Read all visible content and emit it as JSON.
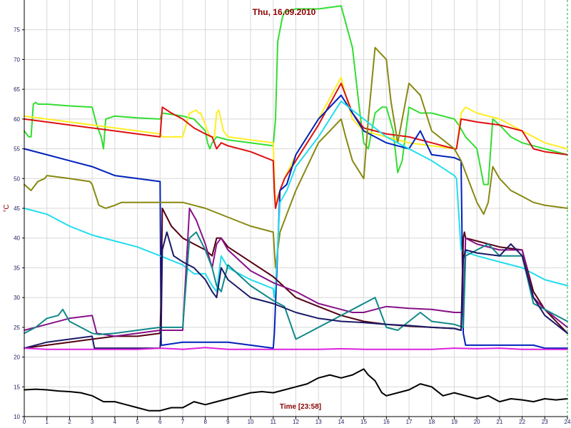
{
  "chart_data": {
    "type": "line",
    "title": "Thu, 16.09.2010",
    "xlabel": "Time [23:58]",
    "ylabel": "°C",
    "xlim": [
      0,
      24
    ],
    "ylim": [
      10,
      80
    ],
    "xticks": [
      "0",
      "1",
      "2",
      "3",
      "4",
      "5",
      "6",
      "7",
      "8",
      "9",
      "10",
      "11",
      "12",
      "13",
      "14",
      "15",
      "16",
      "17",
      "18",
      "19",
      "20",
      "21",
      "22",
      "23",
      "24"
    ],
    "yticks": [
      "10",
      "15",
      "20",
      "25",
      "30",
      "35",
      "40",
      "45",
      "50",
      "55",
      "60",
      "65",
      "70",
      "75"
    ],
    "grid": true,
    "background": "#ffffff",
    "grid_color": "#d8d8d8",
    "axis_color": "#000000",
    "series": [
      {
        "color": "#33dd33",
        "x": [
          0,
          0.2,
          0.3,
          0.4,
          0.5,
          0.6,
          1,
          2,
          3,
          3.2,
          3.4,
          3.5,
          3.6,
          4,
          5,
          6,
          6.1,
          7,
          7.5,
          8,
          8.1,
          8.2,
          8.3,
          8.5,
          9,
          10,
          11,
          11.1,
          11.2,
          11.4,
          11.5,
          12,
          13,
          14,
          14.5,
          14.8,
          15,
          15.2,
          15.5,
          15.8,
          16,
          16.3,
          16.5,
          16.7,
          17,
          17.5,
          18,
          19,
          19.2,
          19.5,
          20,
          20.3,
          20.5,
          20.7,
          21,
          21.5,
          22,
          23,
          24
        ],
        "y": [
          58,
          57,
          57,
          62.5,
          62.8,
          62.5,
          62.5,
          62.2,
          62,
          59,
          57,
          55,
          60,
          60.5,
          60.2,
          60,
          61,
          60.5,
          60,
          58,
          56,
          55,
          56,
          57,
          56.5,
          56,
          55.5,
          60,
          73,
          77,
          78,
          78.5,
          78.5,
          79,
          72,
          62,
          56,
          55,
          61,
          62,
          62,
          58,
          51,
          53,
          62,
          61,
          61,
          60,
          59,
          57,
          55,
          49,
          49,
          60,
          59,
          57,
          56,
          55,
          54
        ]
      },
      {
        "color": "#ffee22",
        "x": [
          0,
          1,
          2,
          3,
          4,
          5,
          6,
          6.1,
          6.3,
          6.5,
          7,
          7.3,
          7.6,
          7.7,
          7.8,
          8,
          8.2,
          8.4,
          8.5,
          8.6,
          8.8,
          9,
          10,
          11,
          11.1,
          11.2,
          11.5,
          12,
          13,
          14,
          14.2,
          14.5,
          15,
          16,
          17,
          18,
          19,
          19.1,
          19.3,
          19.5,
          20,
          21,
          22,
          23,
          24
        ],
        "y": [
          60.5,
          60,
          59.5,
          59,
          58.5,
          58,
          57.5,
          57,
          57,
          57,
          57,
          61,
          61.5,
          61,
          61,
          59,
          57,
          57,
          61,
          61.5,
          58,
          57,
          56.5,
          56,
          45,
          47,
          50,
          54,
          60,
          67,
          64,
          60,
          58,
          57,
          56,
          55.5,
          55,
          55,
          61,
          62,
          61,
          60,
          58,
          56,
          55
        ]
      },
      {
        "color": "#dd1111",
        "x": [
          0,
          1,
          2,
          3,
          4,
          5,
          6,
          6.1,
          6.5,
          7,
          7.5,
          8,
          8.3,
          8.5,
          8.7,
          9,
          10,
          11,
          11.05,
          11.1,
          11.3,
          11.5,
          12,
          13,
          14,
          14.5,
          15,
          16,
          17,
          18,
          19,
          19.1,
          19.3,
          20,
          21,
          22,
          22.5,
          23,
          24
        ],
        "y": [
          60,
          59.5,
          59,
          58.5,
          58,
          57.5,
          57,
          62,
          61,
          60,
          58.5,
          57.5,
          57,
          55,
          56,
          55.5,
          54.5,
          53,
          48,
          45,
          48,
          50,
          53,
          59,
          66,
          61,
          58.5,
          57.5,
          57,
          56,
          55,
          55,
          60,
          59.5,
          59,
          58,
          55,
          54.5,
          54
        ]
      },
      {
        "color": "#0022bb",
        "x": [
          0,
          1,
          2,
          3,
          4,
          5,
          6,
          6.05,
          6.1,
          7,
          8,
          9,
          10,
          11,
          11.05,
          11.3,
          11.6,
          12,
          13,
          14,
          14.5,
          15,
          16,
          17,
          17.5,
          18,
          19,
          19.3,
          19.4,
          19.45,
          19.5,
          20,
          21,
          22,
          22.5,
          23,
          24
        ],
        "y": [
          55,
          54,
          53,
          52,
          50.5,
          50,
          49.5,
          22,
          22,
          22.5,
          22.5,
          22.5,
          22,
          21.5,
          24,
          48,
          49,
          54,
          60,
          64,
          61,
          58,
          56,
          55,
          58,
          54,
          53.5,
          53,
          24,
          23,
          22,
          22,
          22,
          22,
          22,
          21.5,
          21.5
        ]
      },
      {
        "color": "#888811",
        "x": [
          0,
          0.3,
          0.6,
          0.9,
          1,
          2,
          2.9,
          3,
          3.3,
          3.6,
          4,
          4.3,
          5,
          6,
          7,
          7.5,
          8,
          9,
          10,
          11,
          11.1,
          11.3,
          11.6,
          12,
          13,
          14,
          14.2,
          14.5,
          15,
          15.2,
          15.5,
          16,
          16.2,
          16.5,
          16.8,
          17,
          17.5,
          18,
          19,
          19.3,
          20,
          20.3,
          20.5,
          20.7,
          21,
          21.5,
          22,
          22.5,
          23,
          24
        ],
        "y": [
          49,
          48,
          49.5,
          50,
          50.5,
          50,
          49.5,
          49,
          45.5,
          45,
          45.5,
          46,
          46,
          46,
          46,
          45.5,
          45,
          43.5,
          42,
          41,
          35,
          41,
          44,
          48,
          56,
          60,
          57,
          53,
          50,
          60,
          72,
          70,
          63,
          56,
          62,
          66,
          64,
          58,
          55,
          53,
          46,
          44,
          46,
          52,
          50,
          48,
          47,
          46,
          45.5,
          45
        ]
      },
      {
        "color": "#22ddee",
        "x": [
          0,
          1,
          2,
          3,
          4,
          5,
          6,
          7,
          7.5,
          8,
          8.3,
          8.5,
          8.7,
          9,
          10,
          11,
          11.05,
          11.1,
          11.3,
          11.6,
          12,
          13,
          14,
          15,
          16,
          17,
          18,
          19,
          19.1,
          19.3,
          19.6,
          20,
          21,
          22,
          23,
          24
        ],
        "y": [
          45,
          44,
          42,
          40.5,
          39.5,
          38.5,
          37,
          35.5,
          34,
          34,
          32,
          31,
          37,
          35,
          33,
          31.5,
          30,
          32,
          46,
          48,
          52,
          57,
          63,
          60,
          57,
          55,
          53,
          50.5,
          50,
          38,
          37.5,
          37,
          36,
          35,
          33,
          32
        ]
      },
      {
        "color": "#550011",
        "x": [
          0,
          1,
          2,
          3,
          4,
          5,
          6,
          6.05,
          6.1,
          6.5,
          7,
          7.5,
          8,
          8.3,
          8.5,
          8.7,
          9,
          10,
          11,
          12,
          13,
          14,
          15,
          16,
          17,
          18,
          19,
          19.3,
          19.4,
          19.45,
          19.5,
          20,
          21,
          22,
          22.5,
          23,
          23.5,
          24
        ],
        "y": [
          21.5,
          22,
          22.5,
          23,
          23.5,
          23.5,
          24,
          30,
          45,
          42,
          40,
          39,
          38,
          37,
          40,
          40,
          38.5,
          36,
          33.5,
          30,
          28.5,
          27,
          26,
          25.5,
          25.2,
          25,
          24.8,
          24.5,
          40,
          41,
          40,
          39.5,
          38.5,
          38,
          31,
          28,
          26,
          24
        ]
      },
      {
        "color": "#881188",
        "x": [
          0,
          1,
          2,
          3,
          3.2,
          4,
          5,
          6,
          6.5,
          7,
          7.3,
          7.6,
          8,
          8.3,
          8.5,
          8.7,
          9,
          10,
          11,
          12,
          13,
          14,
          14.5,
          15,
          15.5,
          16,
          17,
          18,
          19,
          19.4,
          19.5,
          20,
          21,
          22,
          22.5,
          23,
          24
        ],
        "y": [
          24.5,
          25.5,
          26.5,
          27,
          24,
          23.5,
          24,
          24.5,
          24.5,
          24.5,
          45,
          43,
          39,
          35,
          39,
          40,
          38,
          34.5,
          32.5,
          31,
          29,
          28,
          27.5,
          27.5,
          28,
          28.5,
          28.2,
          28,
          27.5,
          27.5,
          40,
          39,
          38,
          38,
          30,
          28,
          25
        ]
      },
      {
        "color": "#118888",
        "x": [
          0,
          0.5,
          1,
          1.5,
          1.7,
          2,
          2.5,
          3,
          3.3,
          4,
          5,
          6,
          6.5,
          7,
          7.3,
          7.6,
          8,
          8.3,
          8.5,
          8.7,
          9,
          10,
          11,
          11.5,
          12,
          12.5,
          13,
          14,
          15,
          15.5,
          16,
          16.5,
          17,
          17.5,
          18,
          19,
          19.4,
          19.5,
          20,
          20.5,
          21,
          22,
          22.5,
          23,
          24
        ],
        "y": [
          24,
          25,
          26.5,
          27,
          28,
          26,
          25,
          24,
          23.8,
          24,
          24.5,
          25,
          25,
          25,
          40,
          41,
          38,
          35,
          32,
          31,
          35.5,
          32,
          29.5,
          28.5,
          23,
          24,
          25,
          27,
          29,
          30,
          25,
          24.5,
          26,
          27.5,
          26,
          25.5,
          25,
          37,
          38,
          39,
          37,
          37,
          29,
          28,
          26
        ]
      },
      {
        "color": "#1a1a66",
        "x": [
          0,
          1,
          2,
          3,
          3.1,
          4,
          5,
          6,
          6.05,
          6.1,
          6.3,
          6.6,
          7,
          7.5,
          8,
          8.3,
          8.5,
          8.7,
          9,
          10,
          11,
          12,
          13,
          14,
          15,
          16,
          17,
          18,
          19,
          19.3,
          19.4,
          19.5,
          20,
          21,
          21.5,
          22,
          22.5,
          23,
          24
        ],
        "y": [
          21.5,
          22.5,
          23,
          23.5,
          21.5,
          21.5,
          21.5,
          21.5,
          25,
          38,
          41,
          37,
          36,
          35,
          33,
          31,
          30,
          35,
          33,
          30,
          29,
          27.5,
          26.5,
          26,
          25.8,
          25.5,
          25.3,
          25,
          24.8,
          24.5,
          36.5,
          38,
          37.5,
          37,
          39,
          37,
          30,
          27,
          24
        ]
      },
      {
        "color": "#dd22dd",
        "x": [
          0,
          1,
          2,
          3,
          4,
          5,
          6,
          7,
          8,
          9,
          10,
          11,
          12,
          13,
          14,
          15,
          16,
          17,
          18,
          19,
          20,
          21,
          22,
          23,
          24
        ],
        "y": [
          21.5,
          21.3,
          21.3,
          21.3,
          21.3,
          21.3,
          21.5,
          21.3,
          21.6,
          21.3,
          21.3,
          21.3,
          21.3,
          21.3,
          21.4,
          21.3,
          21.3,
          21.3,
          21.3,
          21.5,
          21.4,
          21.5,
          21.3,
          21.3,
          21.3
        ]
      },
      {
        "color": "#000000",
        "x": [
          0,
          0.5,
          1,
          1.5,
          2,
          2.5,
          3,
          3.5,
          4,
          4.5,
          5,
          5.5,
          6,
          6.5,
          7,
          7.5,
          8,
          8.5,
          9,
          9.5,
          10,
          10.5,
          11,
          11.5,
          12,
          12.5,
          13,
          13.5,
          14,
          14.5,
          15,
          15.2,
          15.5,
          15.8,
          16,
          16.5,
          17,
          17.5,
          18,
          18.5,
          19,
          19.5,
          20,
          20.5,
          21,
          21.5,
          22,
          22.5,
          23,
          23.5,
          24
        ],
        "y": [
          14.5,
          14.6,
          14.5,
          14.3,
          14.2,
          14,
          13.5,
          12.5,
          12.5,
          12,
          11.5,
          11,
          11,
          11.5,
          11.5,
          12.5,
          12,
          12.5,
          13,
          13.5,
          14,
          14.2,
          14,
          14.5,
          15,
          15.5,
          16.5,
          17,
          16.5,
          17,
          18,
          17,
          16,
          14,
          13.5,
          14,
          14.5,
          15.5,
          15,
          13.5,
          14,
          13.5,
          13,
          13.5,
          12.5,
          13,
          12.8,
          12.5,
          13,
          12.8,
          13
        ]
      }
    ]
  }
}
